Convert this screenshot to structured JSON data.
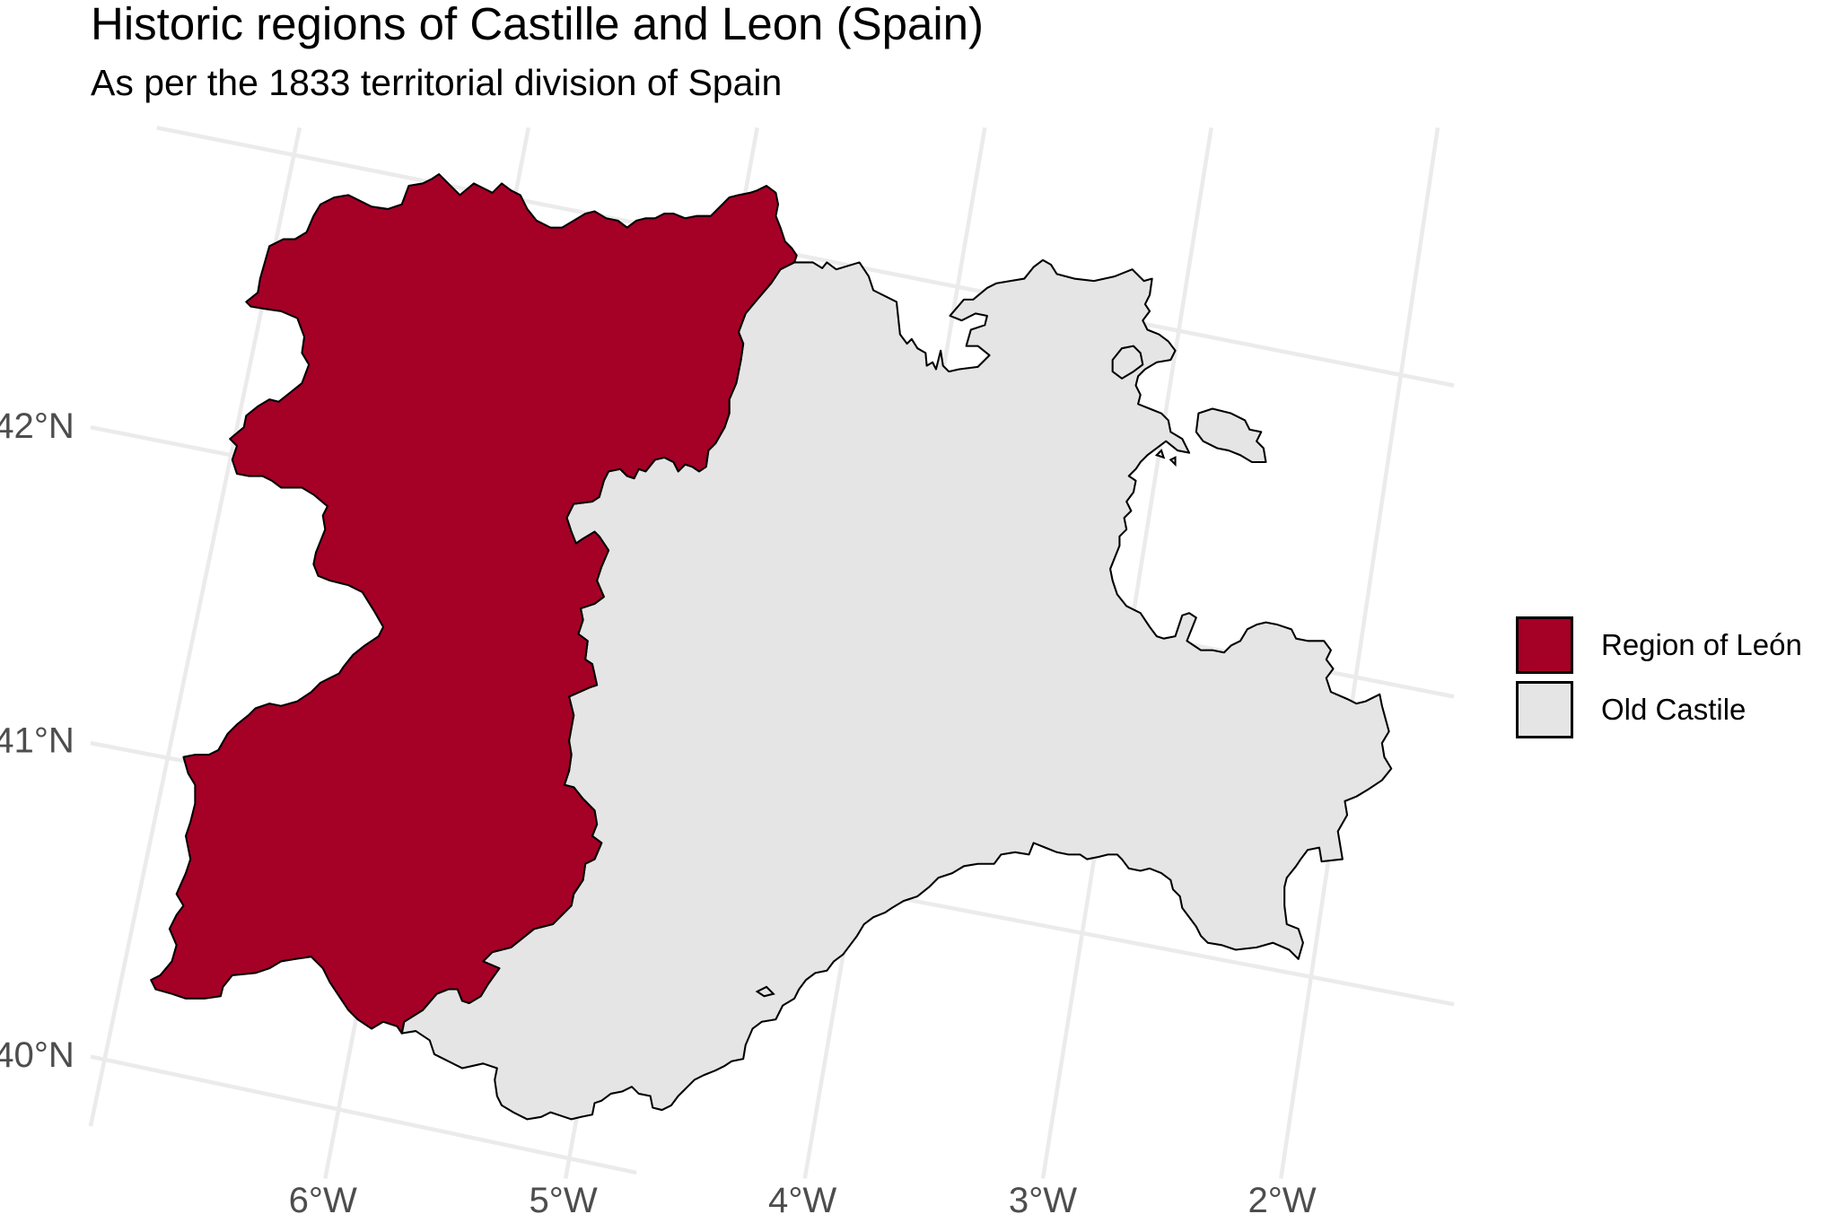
{
  "title": "Historic regions of Castille and Leon (Spain)",
  "subtitle": "As per the 1833 territorial division of Spain",
  "axes": {
    "x_ticks": [
      "6°W",
      "5°W",
      "4°W",
      "3°W",
      "2°W"
    ],
    "y_ticks": [
      "42°N",
      "41°N",
      "40°N"
    ]
  },
  "legend": {
    "items": [
      {
        "label": "Region of León",
        "color": "#a50026"
      },
      {
        "label": "Old Castile",
        "color": "#e5e5e5"
      }
    ]
  },
  "regions": [
    {
      "name": "Region of León",
      "fill": "#a50026"
    },
    {
      "name": "Old Castile",
      "fill": "#e5e5e5"
    }
  ]
}
